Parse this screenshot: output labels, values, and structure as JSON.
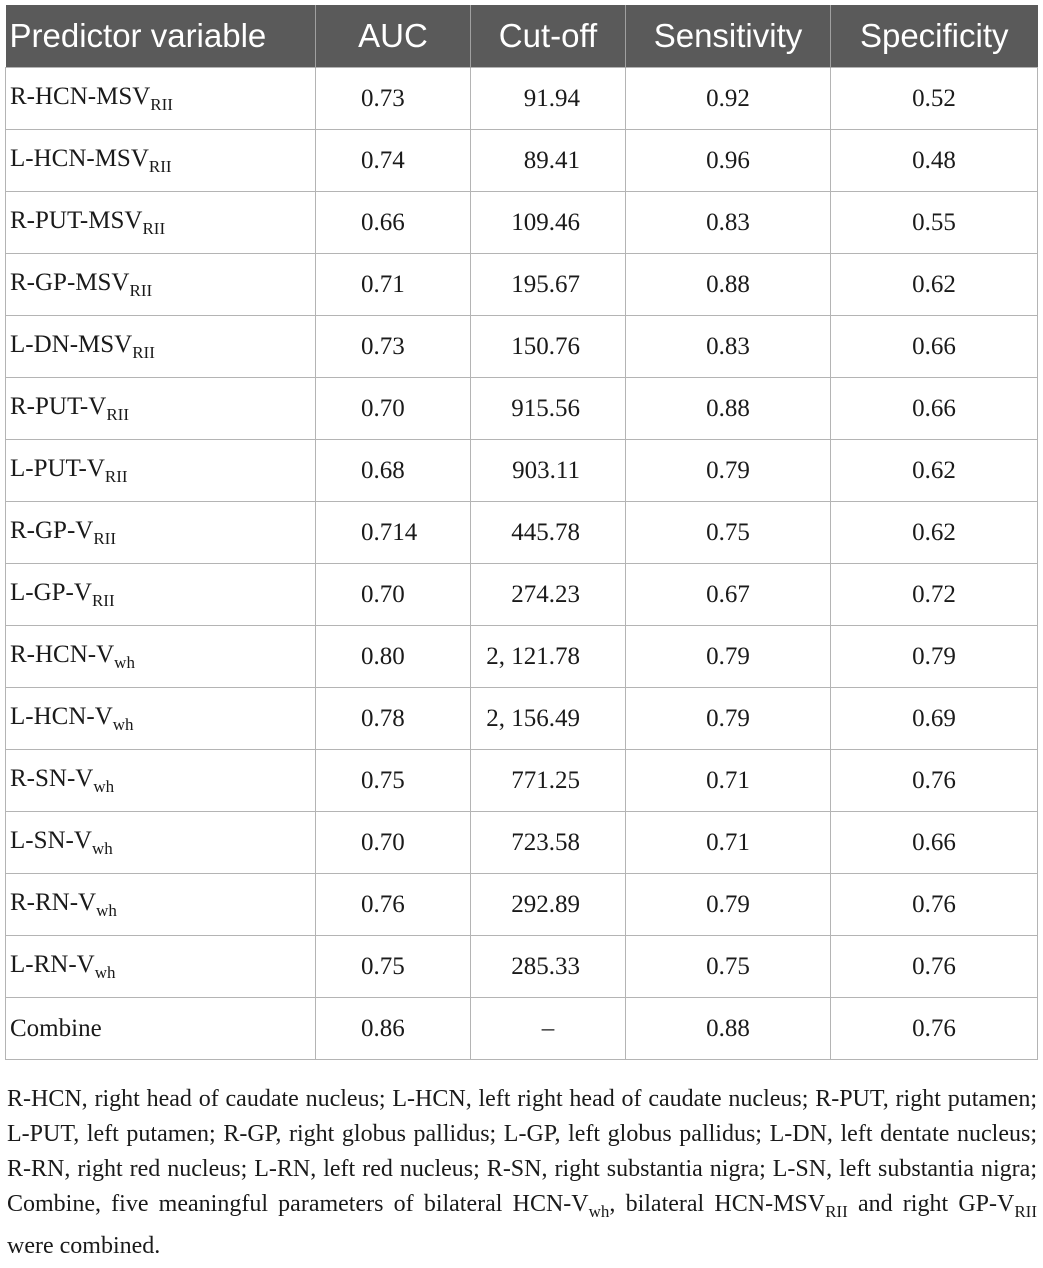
{
  "table": {
    "headers": [
      "Predictor variable",
      "AUC",
      "Cut-off",
      "Sensitivity",
      "Specificity"
    ],
    "rows": [
      {
        "base": "R-HCN-MSV",
        "sub": "RII",
        "auc": "0.73",
        "cutoff": "91.94",
        "sensitivity": "0.92",
        "specificity": "0.52"
      },
      {
        "base": "L-HCN-MSV",
        "sub": "RII",
        "auc": "0.74",
        "cutoff": "89.41",
        "sensitivity": "0.96",
        "specificity": "0.48"
      },
      {
        "base": "R-PUT-MSV",
        "sub": "RII",
        "auc": "0.66",
        "cutoff": "109.46",
        "sensitivity": "0.83",
        "specificity": "0.55"
      },
      {
        "base": "R-GP-MSV",
        "sub": "RII",
        "auc": "0.71",
        "cutoff": "195.67",
        "sensitivity": "0.88",
        "specificity": "0.62"
      },
      {
        "base": "L-DN-MSV",
        "sub": "RII",
        "auc": "0.73",
        "cutoff": "150.76",
        "sensitivity": "0.83",
        "specificity": "0.66"
      },
      {
        "base": "R-PUT-V",
        "sub": "RII",
        "auc": "0.70",
        "cutoff": "915.56",
        "sensitivity": "0.88",
        "specificity": "0.66"
      },
      {
        "base": "L-PUT-V",
        "sub": "RII",
        "auc": "0.68",
        "cutoff": "903.11",
        "sensitivity": "0.79",
        "specificity": "0.62"
      },
      {
        "base": "R-GP-V",
        "sub": "RII",
        "auc": "0.714",
        "cutoff": "445.78",
        "sensitivity": "0.75",
        "specificity": "0.62"
      },
      {
        "base": "L-GP-V",
        "sub": "RII",
        "auc": "0.70",
        "cutoff": "274.23",
        "sensitivity": "0.67",
        "specificity": "0.72"
      },
      {
        "base": "R-HCN-V",
        "sub": "wh",
        "auc": "0.80",
        "cutoff": "2, 121.78",
        "sensitivity": "0.79",
        "specificity": "0.79"
      },
      {
        "base": "L-HCN-V",
        "sub": "wh",
        "auc": "0.78",
        "cutoff": "2, 156.49",
        "sensitivity": "0.79",
        "specificity": "0.69"
      },
      {
        "base": "R-SN-V",
        "sub": "wh",
        "auc": "0.75",
        "cutoff": "771.25",
        "sensitivity": "0.71",
        "specificity": "0.76"
      },
      {
        "base": "L-SN-V",
        "sub": "wh",
        "auc": "0.70",
        "cutoff": "723.58",
        "sensitivity": "0.71",
        "specificity": "0.66"
      },
      {
        "base": "R-RN-V",
        "sub": "wh",
        "auc": "0.76",
        "cutoff": "292.89",
        "sensitivity": "0.79",
        "specificity": "0.76"
      },
      {
        "base": "L-RN-V",
        "sub": "wh",
        "auc": "0.75",
        "cutoff": "285.33",
        "sensitivity": "0.75",
        "specificity": "0.76"
      },
      {
        "base": "Combine",
        "sub": "",
        "auc": "0.86",
        "cutoff": "–",
        "sensitivity": "0.88",
        "specificity": "0.76"
      }
    ]
  },
  "footnote": {
    "part1": "R-HCN, right head of caudate nucleus; L-HCN, left right head of caudate nucleus; R-PUT, right putamen; L-PUT, left putamen; R-GP, right globus pallidus; L-GP, left globus pallidus; L-DN, left dentate nucleus; R-RN, right red nucleus; L-RN, left red nucleus; R-SN, right substantia nigra; L-SN, left substantia nigra; Combine, five meaningful parameters of bilateral HCN-V",
    "sub1": "wh",
    "part2": ", bilateral HCN-MSV",
    "sub2": "RII",
    "part3": " and right GP-V",
    "sub3": "RII",
    "part4": " were combined."
  }
}
